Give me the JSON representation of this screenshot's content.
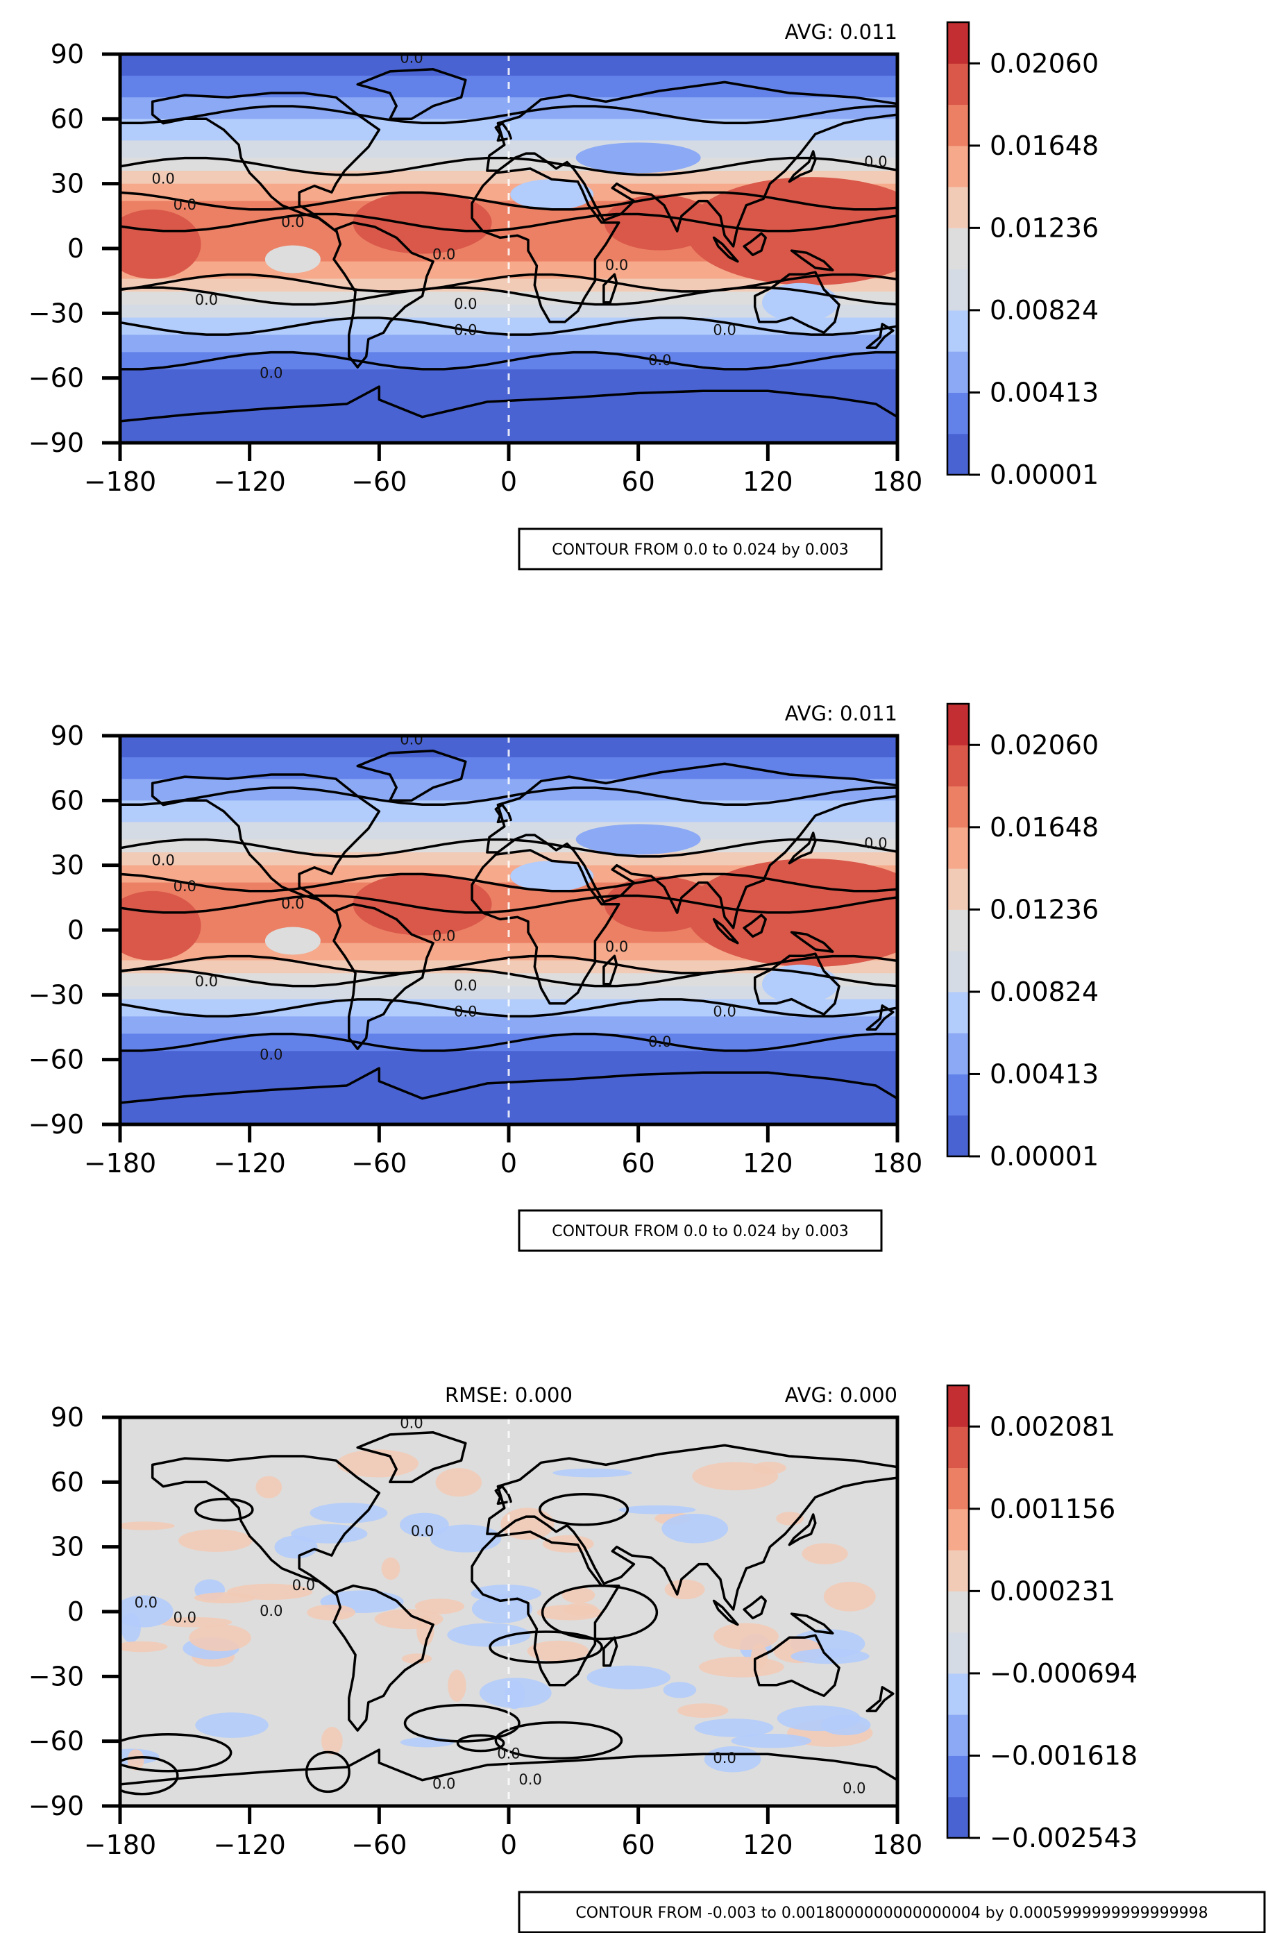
{
  "chart_data": [
    {
      "type": "heatmap",
      "title": "",
      "xlabel": "",
      "ylabel": "",
      "xlim": [
        -180,
        180
      ],
      "ylim": [
        -90,
        90
      ],
      "xticks": [
        "−180",
        "−120",
        "−60",
        "0",
        "60",
        "120",
        "180"
      ],
      "yticks": [
        "90",
        "60",
        "30",
        "0",
        "−30",
        "−60",
        "−90"
      ],
      "annotation_right": "AVG: 0.011",
      "annotation_left": "",
      "contour_box": "CONTOUR FROM 0.0 to 0.024 by 0.003",
      "contour_label": "0.0",
      "colorbar": {
        "ticks": [
          "0.02060",
          "0.01648",
          "0.01236",
          "0.00824",
          "0.00413",
          "0.00001"
        ],
        "range": [
          1e-05,
          0.02266
        ],
        "colormap": "coolwarm"
      }
    },
    {
      "type": "heatmap",
      "title": "",
      "xlabel": "",
      "ylabel": "",
      "xlim": [
        -180,
        180
      ],
      "ylim": [
        -90,
        90
      ],
      "xticks": [
        "−180",
        "−120",
        "−60",
        "0",
        "60",
        "120",
        "180"
      ],
      "yticks": [
        "90",
        "60",
        "30",
        "0",
        "−30",
        "−60",
        "−90"
      ],
      "annotation_right": "AVG: 0.011",
      "annotation_left": "",
      "contour_box": "CONTOUR FROM 0.0 to 0.024 by 0.003",
      "contour_label": "0.0",
      "colorbar": {
        "ticks": [
          "0.02060",
          "0.01648",
          "0.01236",
          "0.00824",
          "0.00413",
          "0.00001"
        ],
        "range": [
          1e-05,
          0.02266
        ],
        "colormap": "coolwarm"
      }
    },
    {
      "type": "heatmap",
      "title": "",
      "xlabel": "",
      "ylabel": "",
      "xlim": [
        -180,
        180
      ],
      "ylim": [
        -90,
        90
      ],
      "xticks": [
        "−180",
        "−120",
        "−60",
        "0",
        "60",
        "120",
        "180"
      ],
      "yticks": [
        "90",
        "60",
        "30",
        "0",
        "−30",
        "−60",
        "−90"
      ],
      "annotation_right": "AVG: 0.000",
      "annotation_left": "RMSE: 0.000",
      "contour_box": "CONTOUR FROM -0.003 to 0.0018000000000000004 by 0.0005999999999999998",
      "contour_label": "0.0",
      "colorbar": {
        "ticks": [
          "0.002081",
          "0.001156",
          "0.000231",
          "−0.000694",
          "−0.001618",
          "−0.002543"
        ],
        "range": [
          -0.002543,
          0.002543
        ],
        "colormap": "coolwarm"
      }
    }
  ],
  "colors": {
    "coolwarm": [
      "#4a63d3",
      "#6282ea",
      "#8ba9f5",
      "#b2ccfb",
      "#d5dbe5",
      "#dddddd",
      "#f2cbb7",
      "#f6a98b",
      "#ec8064",
      "#d9584a",
      "#c22e31"
    ],
    "diff_neutral": "#dddddd",
    "contour_line": "#000000"
  }
}
